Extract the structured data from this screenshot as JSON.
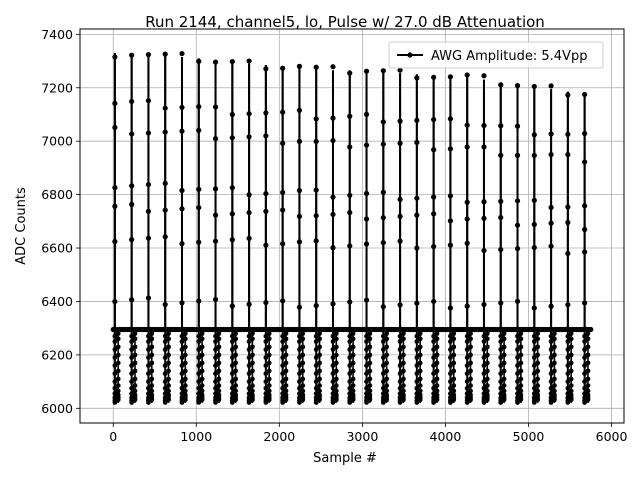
{
  "chart_data": {
    "type": "line",
    "title": "Run 2144, channel5, lo, Pulse w/ 27.0 dB Attenuation",
    "xlabel": "Sample #",
    "ylabel": "ADC Counts",
    "xlim": [
      -400,
      6150
    ],
    "ylim": [
      5945,
      7420
    ],
    "xticks": [
      0,
      1000,
      2000,
      3000,
      4000,
      5000,
      6000
    ],
    "yticks": [
      6000,
      6200,
      6400,
      6600,
      6800,
      7000,
      7200,
      7400
    ],
    "grid": true,
    "legend_position": "upper right",
    "baseline": 6295,
    "minimum": 6020,
    "series": [
      {
        "name": "AWG Amplitude: 5.4Vpp",
        "color": "#000000",
        "marker": "circle",
        "pulse_positions": [
          20,
          222,
          424,
          626,
          828,
          1030,
          1232,
          1434,
          1636,
          1838,
          2040,
          2242,
          2444,
          2646,
          2848,
          3050,
          3252,
          3454,
          3656,
          3858,
          4060,
          4262,
          4464,
          4666,
          4868,
          5070,
          5272,
          5474,
          5676
        ],
        "pulse_peaks": [
          7330,
          7330,
          7325,
          7320,
          7315,
          7310,
          7300,
          7295,
          7290,
          7285,
          7280,
          7280,
          7270,
          7265,
          7265,
          7265,
          7260,
          7255,
          7250,
          7245,
          7240,
          7240,
          7230,
          7220,
          7210,
          7200,
          7195,
          7185,
          7180
        ],
        "pulse_minimum": [
          6020,
          6020,
          6020,
          6020,
          6020,
          6020,
          6020,
          6020,
          6020,
          6020,
          6020,
          6020,
          6020,
          6020,
          6020,
          6020,
          6020,
          6020,
          6020,
          6020,
          6020,
          6020,
          6020,
          6020,
          6020,
          6020,
          6020,
          6020,
          6020
        ],
        "x_end": 5760
      }
    ]
  }
}
